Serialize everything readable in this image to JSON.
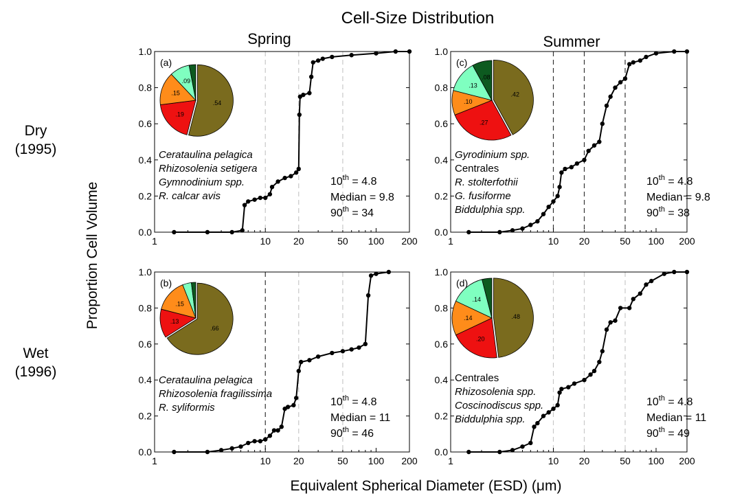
{
  "title": "Cell-Size Distribution",
  "col_labels": [
    "Spring",
    "Summer"
  ],
  "row_labels": [
    [
      "Dry",
      "(1995)"
    ],
    [
      "Wet",
      "(1996)"
    ]
  ],
  "ylabel": "Proportion Cell Volume",
  "xlabel": "Equivalent Spherical Diameter (ESD) (μm)",
  "xticks": [
    "1",
    "10",
    "20",
    "50",
    "100",
    "200"
  ],
  "yticks": [
    "0.0",
    "0.2",
    "0.4",
    "0.6",
    "0.8",
    "1.0"
  ],
  "colors": {
    "olive": "#7a6b1e",
    "red": "#ee1111",
    "orange": "#ff8c1a",
    "aqua": "#7fffc0",
    "darkgreen": "#0d5a20",
    "dashed_dark": "#333333",
    "dashed_light": "#c8c8c8"
  },
  "chart_data": [
    {
      "type": "line",
      "panel": "(a)",
      "xscale": "log",
      "xlim": [
        1,
        200
      ],
      "ylim": [
        0,
        1
      ],
      "ref_lines": [
        {
          "x": 10,
          "style": "light"
        },
        {
          "x": 20,
          "style": "light"
        },
        {
          "x": 50,
          "style": "light"
        }
      ],
      "cumulative": [
        [
          1.5,
          0
        ],
        [
          3,
          0
        ],
        [
          5,
          0
        ],
        [
          6.2,
          0.01
        ],
        [
          6.5,
          0.15
        ],
        [
          7,
          0.17
        ],
        [
          8,
          0.18
        ],
        [
          9,
          0.19
        ],
        [
          10,
          0.19
        ],
        [
          11,
          0.21
        ],
        [
          11.5,
          0.25
        ],
        [
          13,
          0.28
        ],
        [
          15,
          0.3
        ],
        [
          17,
          0.31
        ],
        [
          19,
          0.33
        ],
        [
          20,
          0.35
        ],
        [
          20.3,
          0.65
        ],
        [
          20.6,
          0.75
        ],
        [
          22,
          0.76
        ],
        [
          25,
          0.77
        ],
        [
          26,
          0.86
        ],
        [
          27,
          0.94
        ],
        [
          30,
          0.95
        ],
        [
          33,
          0.96
        ],
        [
          40,
          0.97
        ],
        [
          60,
          0.98
        ],
        [
          100,
          0.99
        ],
        [
          150,
          1
        ],
        [
          200,
          1
        ]
      ],
      "pie": [
        {
          "value": 0.54,
          "color": "olive",
          "label": ".54"
        },
        {
          "value": 0.19,
          "color": "red",
          "label": ".19"
        },
        {
          "value": 0.15,
          "color": "orange",
          "label": ".15"
        },
        {
          "value": 0.09,
          "color": "aqua",
          "label": ".09"
        },
        {
          "value": 0.03,
          "color": "darkgreen",
          "label": ""
        }
      ],
      "taxa": [
        {
          "text": "Cerataulina pelagica",
          "italic": true
        },
        {
          "text": "Rhizosolenia setigera",
          "italic": true
        },
        {
          "text": "Gymnodinium spp.",
          "italic": true
        },
        {
          "text": "R. calcar avis",
          "italic": true
        }
      ],
      "stats": {
        "p10": "4.8",
        "median": "9.8",
        "p90": "34"
      }
    },
    {
      "type": "line",
      "panel": "(c)",
      "xscale": "log",
      "xlim": [
        1,
        200
      ],
      "ylim": [
        0,
        1
      ],
      "ref_lines": [
        {
          "x": 10,
          "style": "dark"
        },
        {
          "x": 20,
          "style": "dark"
        },
        {
          "x": 50,
          "style": "dark"
        }
      ],
      "cumulative": [
        [
          1.5,
          0
        ],
        [
          3,
          0
        ],
        [
          4,
          0.01
        ],
        [
          5,
          0.02
        ],
        [
          6,
          0.04
        ],
        [
          7,
          0.06
        ],
        [
          8,
          0.1
        ],
        [
          9,
          0.14
        ],
        [
          10,
          0.17
        ],
        [
          11,
          0.2
        ],
        [
          11.5,
          0.25
        ],
        [
          12,
          0.33
        ],
        [
          13,
          0.35
        ],
        [
          15,
          0.36
        ],
        [
          17,
          0.38
        ],
        [
          20,
          0.4
        ],
        [
          22,
          0.45
        ],
        [
          25,
          0.48
        ],
        [
          28,
          0.5
        ],
        [
          30,
          0.6
        ],
        [
          33,
          0.7
        ],
        [
          36,
          0.75
        ],
        [
          40,
          0.8
        ],
        [
          45,
          0.83
        ],
        [
          50,
          0.85
        ],
        [
          55,
          0.93
        ],
        [
          60,
          0.94
        ],
        [
          70,
          0.95
        ],
        [
          80,
          0.97
        ],
        [
          100,
          0.99
        ],
        [
          150,
          1
        ],
        [
          200,
          1
        ]
      ],
      "pie": [
        {
          "value": 0.42,
          "color": "olive",
          "label": ".42"
        },
        {
          "value": 0.27,
          "color": "red",
          "label": ".27"
        },
        {
          "value": 0.1,
          "color": "orange",
          "label": ".10"
        },
        {
          "value": 0.13,
          "color": "aqua",
          "label": ".13"
        },
        {
          "value": 0.08,
          "color": "darkgreen",
          "label": ".08"
        }
      ],
      "taxa": [
        {
          "text": "Gyrodinium spp.",
          "italic": true
        },
        {
          "text": "Centrales",
          "italic": false
        },
        {
          "text": "R. stolterfothii",
          "italic": true
        },
        {
          "text": "G. fusiforme",
          "italic": true
        },
        {
          "text": "Biddulphia spp.",
          "italic": true
        }
      ],
      "stats": {
        "p10": "4.8",
        "median": "9.8",
        "p90": "38"
      }
    },
    {
      "type": "line",
      "panel": "(b)",
      "xscale": "log",
      "xlim": [
        1,
        200
      ],
      "ylim": [
        0,
        1
      ],
      "ref_lines": [
        {
          "x": 10,
          "style": "dark"
        },
        {
          "x": 20,
          "style": "light"
        },
        {
          "x": 50,
          "style": "light"
        }
      ],
      "cumulative": [
        [
          1.5,
          0
        ],
        [
          3,
          0
        ],
        [
          4,
          0.01
        ],
        [
          5,
          0.02
        ],
        [
          6,
          0.03
        ],
        [
          7,
          0.05
        ],
        [
          8,
          0.06
        ],
        [
          9,
          0.06
        ],
        [
          10,
          0.07
        ],
        [
          11,
          0.09
        ],
        [
          12,
          0.12
        ],
        [
          13,
          0.12
        ],
        [
          14,
          0.14
        ],
        [
          15,
          0.24
        ],
        [
          16,
          0.25
        ],
        [
          18,
          0.26
        ],
        [
          19,
          0.3
        ],
        [
          20,
          0.45
        ],
        [
          21,
          0.5
        ],
        [
          25,
          0.51
        ],
        [
          30,
          0.53
        ],
        [
          40,
          0.55
        ],
        [
          50,
          0.56
        ],
        [
          60,
          0.57
        ],
        [
          70,
          0.58
        ],
        [
          80,
          0.6
        ],
        [
          85,
          0.87
        ],
        [
          90,
          0.98
        ],
        [
          100,
          0.99
        ],
        [
          130,
          1
        ]
      ],
      "pie": [
        {
          "value": 0.66,
          "color": "olive",
          "label": ".66"
        },
        {
          "value": 0.13,
          "color": "red",
          "label": ".13"
        },
        {
          "value": 0.15,
          "color": "orange",
          "label": ".15"
        },
        {
          "value": 0.04,
          "color": "aqua",
          "label": ""
        },
        {
          "value": 0.02,
          "color": "darkgreen",
          "label": ""
        }
      ],
      "taxa": [
        {
          "text": "Cerataulina pelagica",
          "italic": true
        },
        {
          "text": "Rhizosolenia fragilissima",
          "italic": true
        },
        {
          "text": "R. syliformis",
          "italic": true
        }
      ],
      "stats": {
        "p10": "4.8",
        "median": "11",
        "p90": "46"
      }
    },
    {
      "type": "line",
      "panel": "(d)",
      "xscale": "log",
      "xlim": [
        1,
        200
      ],
      "ylim": [
        0,
        1
      ],
      "ref_lines": [
        {
          "x": 10,
          "style": "light"
        },
        {
          "x": 20,
          "style": "light"
        },
        {
          "x": 50,
          "style": "light"
        }
      ],
      "cumulative": [
        [
          1.5,
          0
        ],
        [
          3,
          0
        ],
        [
          4,
          0.01
        ],
        [
          5,
          0.03
        ],
        [
          6,
          0.05
        ],
        [
          6.5,
          0.14
        ],
        [
          7,
          0.16
        ],
        [
          8,
          0.2
        ],
        [
          9,
          0.22
        ],
        [
          10,
          0.24
        ],
        [
          11,
          0.26
        ],
        [
          11.5,
          0.33
        ],
        [
          12,
          0.35
        ],
        [
          14,
          0.36
        ],
        [
          16,
          0.38
        ],
        [
          20,
          0.4
        ],
        [
          23,
          0.43
        ],
        [
          25,
          0.45
        ],
        [
          28,
          0.5
        ],
        [
          30,
          0.56
        ],
        [
          33,
          0.68
        ],
        [
          36,
          0.72
        ],
        [
          40,
          0.73
        ],
        [
          45,
          0.8
        ],
        [
          55,
          0.8
        ],
        [
          60,
          0.85
        ],
        [
          70,
          0.88
        ],
        [
          80,
          0.93
        ],
        [
          90,
          0.95
        ],
        [
          120,
          0.99
        ],
        [
          150,
          1
        ],
        [
          200,
          1
        ]
      ],
      "pie": [
        {
          "value": 0.48,
          "color": "olive",
          "label": ".48"
        },
        {
          "value": 0.2,
          "color": "red",
          "label": ".20"
        },
        {
          "value": 0.14,
          "color": "orange",
          "label": ".14"
        },
        {
          "value": 0.14,
          "color": "aqua",
          "label": ".14"
        },
        {
          "value": 0.04,
          "color": "darkgreen",
          "label": ""
        }
      ],
      "taxa": [
        {
          "text": "Centrales",
          "italic": false
        },
        {
          "text": "Rhizosolenia spp.",
          "italic": true
        },
        {
          "text": "Coscinodiscus spp.",
          "italic": true
        },
        {
          "text": "Biddulphia spp.",
          "italic": true
        }
      ],
      "stats": {
        "p10": "4.8",
        "median": "11",
        "p90": "49"
      }
    }
  ]
}
